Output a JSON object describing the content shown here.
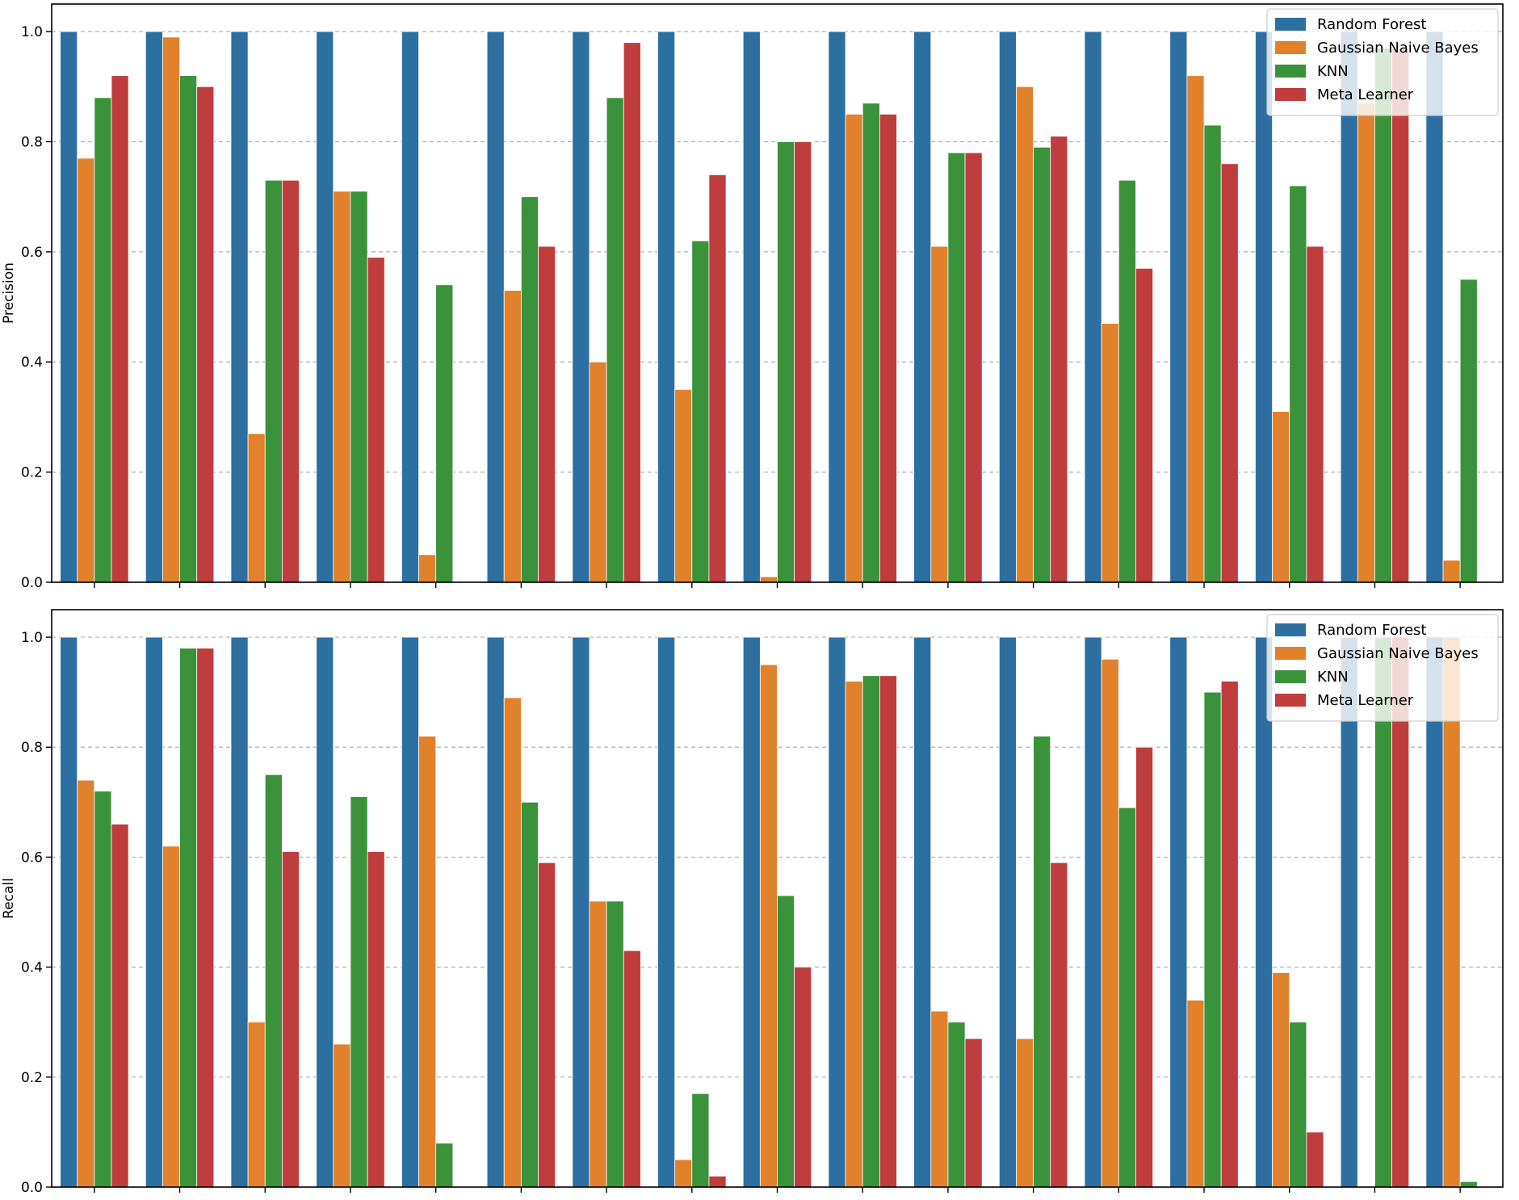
{
  "chart_data": [
    {
      "type": "bar",
      "title": "",
      "xlabel": "",
      "ylabel": "Precision",
      "ylim": [
        0,
        1.05
      ],
      "yticks": [
        0.0,
        0.2,
        0.4,
        0.6,
        0.8,
        1.0
      ],
      "ytick_labels": [
        "0.0",
        "0.2",
        "0.4",
        "0.6",
        "0.8",
        "1.0"
      ],
      "grid": "horizontal dashed",
      "legend_position": "top-right",
      "categories": [
        "",
        "",
        "",
        "",
        "",
        "",
        "",
        "",
        "",
        "",
        "",
        "",
        "",
        "",
        "",
        "",
        ""
      ],
      "series": [
        {
          "name": "Random Forest",
          "color": "#2e6fa2",
          "values": [
            1.0,
            1.0,
            1.0,
            1.0,
            1.0,
            1.0,
            1.0,
            1.0,
            1.0,
            1.0,
            1.0,
            1.0,
            1.0,
            1.0,
            1.0,
            1.0,
            1.0
          ]
        },
        {
          "name": "Gaussian Naive Bayes",
          "color": "#e1812c",
          "values": [
            0.77,
            0.99,
            0.27,
            0.71,
            0.05,
            0.53,
            0.4,
            0.35,
            0.01,
            0.85,
            0.61,
            0.9,
            0.47,
            0.92,
            0.31,
            0.87,
            0.04
          ]
        },
        {
          "name": "KNN",
          "color": "#3a923a",
          "values": [
            0.88,
            0.92,
            0.73,
            0.71,
            0.54,
            0.7,
            0.88,
            0.62,
            0.8,
            0.87,
            0.78,
            0.79,
            0.73,
            0.83,
            0.72,
            0.97,
            0.55
          ]
        },
        {
          "name": "Meta Learner",
          "color": "#c03d3e",
          "values": [
            0.92,
            0.9,
            0.73,
            0.59,
            0.0,
            0.61,
            0.98,
            0.74,
            0.8,
            0.85,
            0.78,
            0.81,
            0.57,
            0.76,
            0.61,
            0.97,
            0.0
          ]
        }
      ]
    },
    {
      "type": "bar",
      "title": "",
      "xlabel": "",
      "ylabel": "Recall",
      "ylim": [
        0,
        1.05
      ],
      "yticks": [
        0.0,
        0.2,
        0.4,
        0.6,
        0.8,
        1.0
      ],
      "ytick_labels": [
        "0.0",
        "0.2",
        "0.4",
        "0.6",
        "0.8",
        "1.0"
      ],
      "grid": "horizontal dashed",
      "legend_position": "top-right",
      "categories": [
        "",
        "",
        "",
        "",
        "",
        "",
        "",
        "",
        "",
        "",
        "",
        "",
        "",
        "",
        "",
        "",
        ""
      ],
      "series": [
        {
          "name": "Random Forest",
          "color": "#2e6fa2",
          "values": [
            1.0,
            1.0,
            1.0,
            1.0,
            1.0,
            1.0,
            1.0,
            1.0,
            1.0,
            1.0,
            1.0,
            1.0,
            1.0,
            1.0,
            1.0,
            1.0,
            1.0
          ]
        },
        {
          "name": "Gaussian Naive Bayes",
          "color": "#e1812c",
          "values": [
            0.74,
            0.62,
            0.3,
            0.26,
            0.82,
            0.89,
            0.52,
            0.05,
            0.95,
            0.92,
            0.32,
            0.27,
            0.96,
            0.34,
            0.39,
            0.0,
            1.0
          ]
        },
        {
          "name": "KNN",
          "color": "#3a923a",
          "values": [
            0.72,
            0.98,
            0.75,
            0.71,
            0.08,
            0.7,
            0.52,
            0.17,
            0.53,
            0.93,
            0.3,
            0.82,
            0.69,
            0.9,
            0.3,
            1.0,
            0.01
          ]
        },
        {
          "name": "Meta Learner",
          "color": "#c03d3e",
          "values": [
            0.66,
            0.98,
            0.61,
            0.61,
            0.0,
            0.59,
            0.43,
            0.02,
            0.4,
            0.93,
            0.27,
            0.59,
            0.8,
            0.92,
            0.1,
            1.0,
            0.0
          ]
        }
      ]
    }
  ]
}
